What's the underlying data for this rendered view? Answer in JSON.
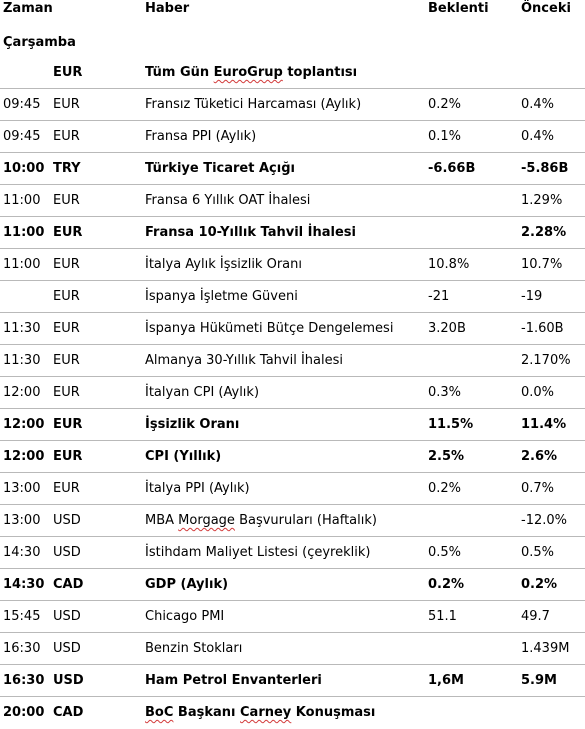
{
  "headers": {
    "time": "Zaman",
    "news": "Haber",
    "expected": "Beklenti",
    "previous": "Önceki"
  },
  "day": "Çarşamba",
  "rows": [
    {
      "time": "",
      "currency": "EUR",
      "event": "Tüm Gün EuroGrup toplantısı",
      "expected": "",
      "previous": "",
      "bold": true
    },
    {
      "time": "09:45",
      "currency": "EUR",
      "event": "Fransız Tüketici Harcaması (Aylık)",
      "expected": "0.2%",
      "previous": "0.4%",
      "bold": false
    },
    {
      "time": "09:45",
      "currency": "EUR",
      "event": "Fransa PPI (Aylık)",
      "expected": "0.1%",
      "previous": "0.4%",
      "bold": false
    },
    {
      "time": "10:00",
      "currency": "TRY",
      "event": "Türkiye Ticaret Açığı",
      "expected": "-6.66B",
      "previous": "-5.86B",
      "bold": true
    },
    {
      "time": "11:00",
      "currency": "EUR",
      "event": "Fransa 6 Yıllık OAT İhalesi",
      "expected": "",
      "previous": "1.29%",
      "bold": false
    },
    {
      "time": "11:00",
      "currency": "EUR",
      "event": "Fransa 10-Yıllık Tahvil İhalesi",
      "expected": "",
      "previous": "2.28%",
      "bold": true
    },
    {
      "time": "11:00",
      "currency": "EUR",
      "event": "İtalya Aylık İşsizlik Oranı",
      "expected": "10.8%",
      "previous": "10.7%",
      "bold": false
    },
    {
      "time": "",
      "currency": "EUR",
      "event": "İspanya İşletme Güveni",
      "expected": "-21",
      "previous": "-19",
      "bold": false
    },
    {
      "time": "11:30",
      "currency": "EUR",
      "event": "İspanya Hükümeti Bütçe Dengelemesi",
      "expected": " 3.20B",
      "previous": "-1.60B",
      "bold": false
    },
    {
      "time": "11:30",
      "currency": "EUR",
      "event": "Almanya 30-Yıllık Tahvil İhalesi",
      "expected": "",
      "previous": "2.170%",
      "bold": false
    },
    {
      "time": "12:00",
      "currency": "EUR",
      "event": "İtalyan CPI (Aylık)",
      "expected": "0.3%",
      "previous": "0.0%",
      "bold": false
    },
    {
      "time": "12:00",
      "currency": "EUR",
      "event": "İşsizlik Oranı",
      "expected": "11.5%",
      "previous": "11.4%",
      "bold": true
    },
    {
      "time": "12:00",
      "currency": "EUR",
      "event": "CPI (Yıllık)",
      "expected": "2.5%",
      "previous": "2.6%",
      "bold": true
    },
    {
      "time": "13:00",
      "currency": "EUR",
      "event": "İtalya PPI (Aylık)",
      "expected": "0.2%",
      "previous": "0.7%",
      "bold": false
    },
    {
      "time": "13:00",
      "currency": "USD",
      "event": "MBA Morgage Başvuruları (Haftalık)",
      "expected": "",
      "previous": "-12.0%",
      "bold": false
    },
    {
      "time": "14:30",
      "currency": "USD",
      "event": "İstihdam Maliyet Listesi (çeyreklik)",
      "expected": "0.5%",
      "previous": "0.5%",
      "bold": false
    },
    {
      "time": "14:30",
      "currency": "CAD",
      "event": "GDP (Aylık)",
      "expected": "0.2%",
      "previous": "0.2%",
      "bold": true
    },
    {
      "time": "15:45",
      "currency": "USD",
      "event": "Chicago PMI",
      "expected": "51.1",
      "previous": "49.7",
      "bold": false
    },
    {
      "time": "16:30",
      "currency": "USD",
      "event": "Benzin Stokları",
      "expected": "",
      "previous": "1.439M",
      "bold": false
    },
    {
      "time": "16:30",
      "currency": "USD",
      "event": "Ham Petrol Envanterleri",
      "expected": "1,6M",
      "previous": "5.9M",
      "bold": true
    },
    {
      "time": "20:00",
      "currency": "CAD",
      "event": "BoC Başkanı Carney Konuşması",
      "expected": "",
      "previous": "",
      "bold": true
    }
  ]
}
